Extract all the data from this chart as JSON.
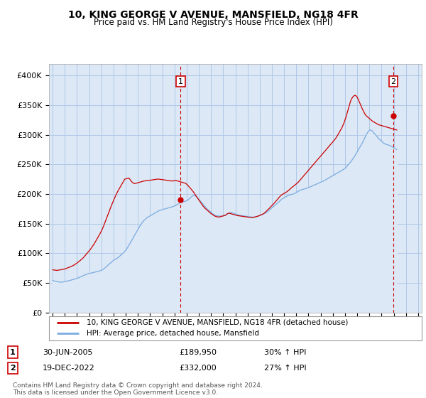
{
  "title": "10, KING GEORGE V AVENUE, MANSFIELD, NG18 4FR",
  "subtitle": "Price paid vs. HM Land Registry's House Price Index (HPI)",
  "legend_line1": "10, KING GEORGE V AVENUE, MANSFIELD, NG18 4FR (detached house)",
  "legend_line2": "HPI: Average price, detached house, Mansfield",
  "footnote": "Contains HM Land Registry data © Crown copyright and database right 2024.\nThis data is licensed under the Open Government Licence v3.0.",
  "ylim": [
    0,
    420000
  ],
  "yticks": [
    0,
    50000,
    100000,
    150000,
    200000,
    250000,
    300000,
    350000,
    400000
  ],
  "ytick_labels": [
    "£0",
    "£50K",
    "£100K",
    "£150K",
    "£200K",
    "£250K",
    "£300K",
    "£350K",
    "£400K"
  ],
  "sale1": {
    "year": 2005.5,
    "price": 189950,
    "label": "1",
    "date": "30-JUN-2005",
    "price_str": "£189,950",
    "pct": "30% ↑ HPI"
  },
  "sale2": {
    "year": 2022.96,
    "price": 332000,
    "label": "2",
    "date": "19-DEC-2022",
    "price_str": "£332,000",
    "pct": "27% ↑ HPI"
  },
  "red_color": "#cc0000",
  "blue_color": "#7aabe0",
  "fill_color": "#dce8f5",
  "background_color": "#dce8f5",
  "grid_color": "#b0c8e8",
  "hpi_data_monthly": {
    "start_year": 1995,
    "start_month": 1,
    "values": [
      54000,
      53500,
      53000,
      52500,
      52000,
      51800,
      51500,
      51300,
      51000,
      51200,
      51400,
      51600,
      52000,
      52300,
      52700,
      53100,
      53500,
      54000,
      54500,
      55000,
      55500,
      56000,
      56500,
      57000,
      57500,
      58200,
      59000,
      59800,
      60500,
      61200,
      62000,
      62800,
      63500,
      64200,
      65000,
      65300,
      65700,
      66100,
      66500,
      67000,
      67400,
      67800,
      68200,
      68600,
      69000,
      69500,
      70000,
      70500,
      71000,
      72000,
      73000,
      74500,
      76000,
      77500,
      79000,
      80500,
      82000,
      83500,
      85000,
      86500,
      88000,
      89000,
      90000,
      91000,
      92000,
      93500,
      95000,
      96500,
      98000,
      99500,
      101000,
      103000,
      105000,
      107500,
      110000,
      113000,
      116000,
      119000,
      122000,
      125000,
      128000,
      131000,
      134000,
      137000,
      140000,
      143000,
      146000,
      148500,
      151000,
      153500,
      155500,
      157000,
      158500,
      160000,
      161000,
      162000,
      163000,
      164000,
      165000,
      166000,
      167000,
      168000,
      169000,
      170000,
      171000,
      172000,
      172500,
      173000,
      173500,
      174000,
      174500,
      175000,
      175500,
      176000,
      176500,
      177000,
      177500,
      178000,
      178500,
      179000,
      179500,
      180500,
      181500,
      182500,
      183500,
      184500,
      185500,
      186000,
      186500,
      187000,
      187500,
      188000,
      188500,
      189500,
      191000,
      192500,
      194000,
      195500,
      197000,
      197500,
      197000,
      196000,
      194500,
      193000,
      191000,
      189000,
      187000,
      185000,
      183000,
      181000,
      179000,
      177000,
      175000,
      173500,
      172000,
      170500,
      169000,
      167500,
      166000,
      165000,
      164000,
      163500,
      163000,
      162800,
      162600,
      162500,
      162500,
      162700,
      163000,
      163500,
      164000,
      165000,
      166000,
      167000,
      168000,
      168500,
      168500,
      168000,
      167500,
      166800,
      166000,
      165500,
      165000,
      164500,
      164000,
      163800,
      163500,
      163300,
      163000,
      162800,
      162500,
      162300,
      162000,
      161800,
      161500,
      161300,
      161000,
      161000,
      161000,
      161200,
      161500,
      162000,
      162500,
      163000,
      163500,
      164200,
      165000,
      165800,
      166500,
      167300,
      168000,
      169000,
      170500,
      172000,
      173500,
      175000,
      176500,
      178000,
      179500,
      181000,
      182500,
      184000,
      185500,
      187000,
      188500,
      190000,
      191500,
      192500,
      193500,
      194500,
      195500,
      196500,
      197500,
      198000,
      198500,
      199000,
      199500,
      200000,
      200500,
      201500,
      202500,
      203500,
      204500,
      205500,
      206500,
      207000,
      207500,
      208000,
      208500,
      209000,
      209500,
      210000,
      210800,
      211500,
      212200,
      213000,
      213800,
      214500,
      215300,
      216000,
      216800,
      217500,
      218300,
      219000,
      219800,
      220500,
      221300,
      222000,
      223000,
      224000,
      225000,
      226000,
      227000,
      228000,
      229000,
      230000,
      231000,
      232000,
      233000,
      234000,
      235000,
      236000,
      237000,
      238000,
      239000,
      240000,
      241000,
      242000,
      243000,
      245000,
      247000,
      249000,
      251000,
      253000,
      255000,
      257500,
      260000,
      262500,
      265000,
      268000,
      271000,
      274000,
      277000,
      280000,
      283000,
      286000,
      289500,
      293000,
      296500,
      300000,
      303000,
      305500,
      307500,
      308000,
      307500,
      306000,
      304000,
      302000,
      300000,
      298000,
      296000,
      294000,
      292000,
      290500,
      289000,
      287500,
      286000,
      285000,
      284000,
      283500,
      283000,
      282500,
      282000,
      281000,
      280000,
      279000,
      278000,
      277000,
      276000,
      275000
    ]
  },
  "red_data_monthly": {
    "start_year": 1995,
    "start_month": 1,
    "values": [
      72000,
      71800,
      71500,
      71200,
      71000,
      71200,
      71500,
      71800,
      72000,
      72300,
      72700,
      73000,
      73500,
      74000,
      74800,
      75500,
      76000,
      76800,
      77500,
      78300,
      79000,
      80000,
      81000,
      82200,
      83500,
      84800,
      86000,
      87500,
      89000,
      90500,
      92000,
      94000,
      96000,
      98000,
      100000,
      102000,
      104000,
      106000,
      108500,
      111000,
      113500,
      116000,
      119000,
      122000,
      125000,
      128000,
      131000,
      134000,
      137500,
      141000,
      145000,
      149500,
      154000,
      158500,
      163000,
      167500,
      172000,
      176500,
      181000,
      185000,
      189000,
      193000,
      197000,
      200500,
      204000,
      207000,
      210000,
      213000,
      216000,
      219000,
      222000,
      225000,
      225500,
      226000,
      226500,
      227000,
      225000,
      222500,
      220500,
      219000,
      218000,
      217500,
      218000,
      218500,
      219000,
      219500,
      220000,
      220500,
      221000,
      221500,
      222000,
      222000,
      222500,
      223000,
      223000,
      223000,
      223200,
      223500,
      223800,
      224000,
      224200,
      224500,
      224800,
      225000,
      225200,
      225000,
      224800,
      224500,
      224200,
      224000,
      223800,
      223500,
      223200,
      223000,
      222800,
      222500,
      222200,
      222000,
      222000,
      222000,
      222500,
      223000,
      222500,
      222000,
      221500,
      221000,
      220500,
      220000,
      219500,
      219000,
      218500,
      218000,
      216500,
      215000,
      213000,
      211000,
      209000,
      207000,
      205000,
      202500,
      200000,
      197500,
      195000,
      192500,
      190000,
      187500,
      185000,
      182500,
      180000,
      178000,
      176000,
      174500,
      173000,
      171500,
      170000,
      168500,
      167000,
      165800,
      164500,
      163500,
      162500,
      162000,
      161500,
      161200,
      161000,
      161500,
      162000,
      162500,
      163000,
      163500,
      164000,
      165000,
      166500,
      167500,
      167500,
      167000,
      166500,
      166000,
      165500,
      165000,
      164500,
      164000,
      163500,
      163300,
      163000,
      162800,
      162500,
      162200,
      162000,
      161800,
      161500,
      161300,
      161000,
      160800,
      160500,
      160300,
      160000,
      160000,
      160500,
      161000,
      161500,
      162000,
      162500,
      163000,
      163800,
      164500,
      165300,
      166000,
      167000,
      168500,
      170000,
      171800,
      173500,
      175000,
      176800,
      178500,
      180500,
      182000,
      184000,
      186000,
      188000,
      190000,
      192000,
      194000,
      196000,
      197500,
      199000,
      200000,
      201000,
      202000,
      203000,
      204000,
      205500,
      207000,
      208500,
      210000,
      211500,
      212800,
      214000,
      215500,
      217000,
      218500,
      220000,
      222000,
      224000,
      226000,
      228000,
      230000,
      232000,
      234000,
      236000,
      238000,
      240000,
      242000,
      244000,
      246000,
      248000,
      250000,
      252000,
      254000,
      256000,
      258000,
      260000,
      262000,
      264000,
      266000,
      268000,
      270000,
      272000,
      274000,
      276000,
      278000,
      280000,
      282000,
      284000,
      286000,
      288000,
      290000,
      292000,
      294500,
      297000,
      300000,
      303000,
      306000,
      309000,
      312000,
      316000,
      320000,
      325000,
      330000,
      336000,
      342000,
      348000,
      354000,
      359000,
      362000,
      364500,
      366000,
      366500,
      365500,
      363500,
      360000,
      356000,
      352000,
      348000,
      344000,
      340500,
      337000,
      334000,
      332000,
      330500,
      329000,
      327500,
      326000,
      324500,
      323000,
      322000,
      321000,
      320000,
      319000,
      318000,
      317000,
      316500,
      316000,
      315500,
      315000,
      314500,
      314000,
      313500,
      313000,
      312500,
      312000,
      311500,
      311000,
      310500,
      310000,
      309500,
      309000,
      308500,
      308000
    ]
  }
}
